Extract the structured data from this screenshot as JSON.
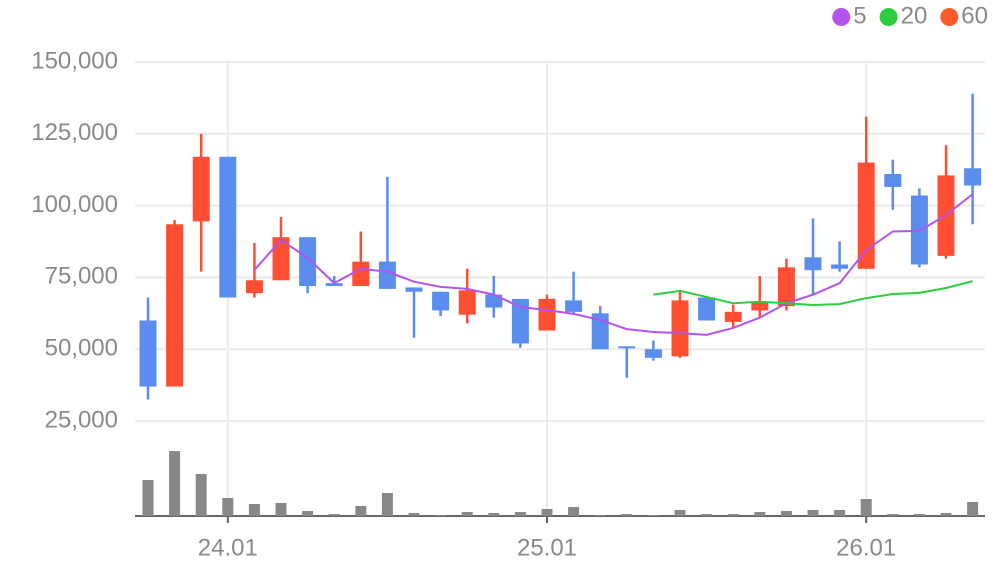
{
  "chart_data": {
    "type": "candlestick",
    "categories": [
      null,
      null,
      null,
      "24.01",
      null,
      null,
      null,
      null,
      null,
      null,
      null,
      null,
      null,
      null,
      null,
      "25.01",
      null,
      null,
      null,
      null,
      null,
      null,
      null,
      null,
      null,
      null,
      null,
      "26.01",
      null,
      null,
      null,
      null
    ],
    "open": [
      60000,
      37000,
      94500,
      117000,
      69500,
      74000,
      89000,
      73000,
      72000,
      80500,
      71500,
      70000,
      62000,
      69000,
      67500,
      56500,
      67000,
      62500,
      51000,
      50000,
      47500,
      68000,
      59500,
      63500,
      65000,
      82000,
      79500,
      78000,
      111000,
      103500,
      82500,
      113000
    ],
    "high": [
      68000,
      95000,
      125000,
      117000,
      87000,
      96000,
      89000,
      75500,
      91000,
      110000,
      71500,
      70000,
      78000,
      75500,
      67500,
      69000,
      77000,
      65000,
      51000,
      53000,
      70500,
      68000,
      65500,
      75500,
      81500,
      95500,
      87500,
      131000,
      116000,
      106000,
      121000,
      139000
    ],
    "low": [
      32500,
      37000,
      77000,
      68000,
      68000,
      74000,
      69500,
      72000,
      72000,
      71000,
      54000,
      61500,
      59000,
      61000,
      50500,
      56500,
      62500,
      50000,
      40000,
      46000,
      47000,
      60000,
      57500,
      61000,
      63500,
      69000,
      77000,
      78000,
      98500,
      78500,
      81500,
      93500
    ],
    "close": [
      37000,
      93500,
      117000,
      68000,
      74000,
      89000,
      72000,
      72000,
      80500,
      71000,
      70000,
      63500,
      70500,
      64500,
      52000,
      67500,
      63000,
      50000,
      50500,
      47000,
      67000,
      60000,
      63000,
      66500,
      78500,
      77500,
      78000,
      115000,
      106500,
      79500,
      110500,
      107000
    ],
    "up_color": "#ff4f33",
    "down_color": "#5b8def",
    "volume": {
      "values": [
        36,
        65,
        42,
        18,
        12,
        13,
        5,
        2,
        10,
        23,
        3,
        1,
        4,
        3,
        4,
        7,
        9,
        1,
        2,
        1,
        6,
        2,
        2,
        4,
        5,
        6,
        6,
        17,
        2,
        2,
        3,
        14
      ],
      "color": "#888888",
      "ylim": [
        0,
        80
      ]
    },
    "series": [
      {
        "name": "5",
        "color": "#b453ee",
        "values": [
          null,
          null,
          null,
          null,
          77600,
          88000,
          81800,
          73000,
          78000,
          77000,
          73500,
          71700,
          71000,
          69000,
          64700,
          63600,
          62300,
          60200,
          57000,
          56000,
          55600,
          55000,
          57400,
          61000,
          66000,
          69000,
          73000,
          84500,
          91000,
          91200,
          96700,
          104000
        ]
      },
      {
        "name": "20",
        "color": "#2ecc40",
        "values": [
          null,
          null,
          null,
          null,
          null,
          null,
          null,
          null,
          null,
          null,
          null,
          null,
          null,
          null,
          null,
          null,
          null,
          null,
          null,
          69000,
          70300,
          68200,
          66000,
          66500,
          66000,
          65400,
          65700,
          67800,
          69200,
          69600,
          71300,
          73700
        ]
      },
      {
        "name": "60",
        "color": "#ff5a2a",
        "values": [
          null,
          null,
          null,
          null,
          null,
          null,
          null,
          null,
          null,
          null,
          null,
          null,
          null,
          null,
          null,
          null,
          null,
          null,
          null,
          null,
          null,
          null,
          null,
          null,
          null,
          null,
          null,
          null,
          null,
          null,
          null,
          null
        ]
      }
    ],
    "ylim": [
      25000,
      150000
    ],
    "yticks": [
      {
        "value": 25000,
        "label": "25,000"
      },
      {
        "value": 50000,
        "label": "50,000"
      },
      {
        "value": 75000,
        "label": "75,000"
      },
      {
        "value": 100000,
        "label": "100,000"
      },
      {
        "value": 125000,
        "label": "125,000"
      },
      {
        "value": 150000,
        "label": "150,000"
      }
    ],
    "grid": true
  }
}
